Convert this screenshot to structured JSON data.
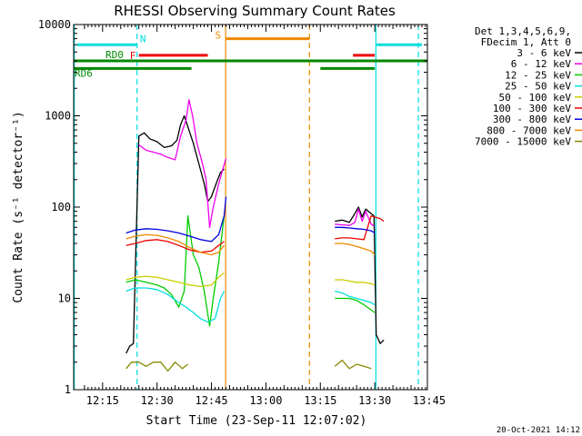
{
  "chart_data": {
    "type": "line",
    "title": "RHESSI Observing Summary Count Rates",
    "xlabel": "Start Time (23-Sep-11 12:07:02)",
    "ylabel": "Count Rate (s⁻¹ detector⁻¹)",
    "yscale": "log",
    "ylim": [
      1,
      10000
    ],
    "xlim_minutes": [
      7.03,
      104.5
    ],
    "x_tick_labels": [
      "12:15",
      "12:30",
      "12:45",
      "13:00",
      "13:15",
      "13:30",
      "13:45"
    ],
    "x_tick_minutes": [
      15,
      30,
      45,
      60,
      75,
      90,
      105
    ],
    "y_tick_labels": [
      "1",
      "10",
      "100",
      "1000",
      "10000"
    ],
    "y_tick_values": [
      1,
      10,
      100,
      1000,
      10000
    ],
    "legend_position": "right",
    "legend_header": [
      "Det 1,3,4,5,6,9,",
      "FDecim 1, Att 0"
    ],
    "timestamp": "20-Oct-2021 14:12",
    "series": [
      {
        "name": "3 - 6 keV",
        "color": "#000000",
        "segments": [
          [
            [
              21.5,
              2.5
            ],
            [
              22.5,
              3
            ],
            [
              23.5,
              3.2
            ],
            [
              25,
              600
            ],
            [
              26.5,
              650
            ],
            [
              28,
              560
            ],
            [
              30,
              520
            ],
            [
              32,
              450
            ],
            [
              34,
              470
            ],
            [
              35.5,
              540
            ],
            [
              36.5,
              800
            ],
            [
              37.5,
              1000
            ],
            [
              38.5,
              760
            ],
            [
              40,
              500
            ],
            [
              41.5,
              300
            ],
            [
              43,
              180
            ],
            [
              44,
              115
            ],
            [
              45,
              130
            ],
            [
              46.5,
              190
            ],
            [
              47.5,
              240
            ],
            [
              48.5,
              260
            ]
          ],
          [
            [
              79,
              70
            ],
            [
              81,
              72
            ],
            [
              83,
              68
            ],
            [
              84.5,
              85
            ],
            [
              85.5,
              100
            ],
            [
              86.5,
              78
            ],
            [
              87.5,
              95
            ],
            [
              89,
              85
            ],
            [
              89.8,
              80
            ],
            [
              90.4,
              4
            ],
            [
              91.5,
              3.2
            ],
            [
              92.5,
              3.5
            ]
          ]
        ]
      },
      {
        "name": "6 - 12 keV",
        "color": "#ee00ee",
        "segments": [
          [
            [
              25,
              480
            ],
            [
              27,
              420
            ],
            [
              29,
              400
            ],
            [
              31,
              380
            ],
            [
              33,
              350
            ],
            [
              35,
              330
            ],
            [
              36.5,
              600
            ],
            [
              38,
              900
            ],
            [
              38.8,
              1500
            ],
            [
              39.8,
              1000
            ],
            [
              41,
              500
            ],
            [
              42.5,
              300
            ],
            [
              43.5,
              200
            ],
            [
              44.5,
              60
            ],
            [
              45.5,
              100
            ],
            [
              47,
              180
            ],
            [
              48,
              250
            ],
            [
              49,
              340
            ]
          ],
          [
            [
              79,
              65
            ],
            [
              81,
              64
            ],
            [
              83,
              63
            ],
            [
              84.5,
              68
            ],
            [
              85.5,
              95
            ],
            [
              86.5,
              70
            ],
            [
              87.5,
              90
            ],
            [
              89,
              65
            ],
            [
              89.8,
              62
            ]
          ]
        ]
      },
      {
        "name": "12 - 25 keV",
        "color": "#00cc00",
        "segments": [
          [
            [
              21.5,
              15
            ],
            [
              24,
              16
            ],
            [
              27,
              15
            ],
            [
              30,
              14
            ],
            [
              32,
              13
            ],
            [
              34,
              11
            ],
            [
              36,
              8
            ],
            [
              37.5,
              12
            ],
            [
              38.5,
              80
            ],
            [
              40,
              30
            ],
            [
              41.5,
              22
            ],
            [
              43,
              12
            ],
            [
              44.5,
              5
            ],
            [
              45.5,
              10
            ],
            [
              47,
              25
            ],
            [
              48.5,
              80
            ]
          ],
          [
            [
              79,
              10
            ],
            [
              81,
              10
            ],
            [
              83,
              10
            ],
            [
              85,
              9.5
            ],
            [
              87,
              8.5
            ],
            [
              89,
              7.5
            ],
            [
              90,
              7
            ]
          ]
        ]
      },
      {
        "name": "25 - 50 keV",
        "color": "#00dddd",
        "segments": [
          [
            [
              21.5,
              12
            ],
            [
              24,
              13
            ],
            [
              27,
              13
            ],
            [
              30,
              12.5
            ],
            [
              33,
              11
            ],
            [
              36,
              9
            ],
            [
              38,
              8
            ],
            [
              40,
              7
            ],
            [
              42,
              6
            ],
            [
              44,
              5.5
            ],
            [
              46,
              6
            ],
            [
              47.5,
              10
            ],
            [
              48.5,
              12
            ]
          ],
          [
            [
              79,
              12
            ],
            [
              81,
              11.5
            ],
            [
              83,
              10.5
            ],
            [
              85,
              10
            ],
            [
              87,
              9.5
            ],
            [
              89,
              9
            ],
            [
              90,
              8.5
            ]
          ]
        ]
      },
      {
        "name": "50 - 100 keV",
        "color": "#cccc00",
        "segments": [
          [
            [
              21.5,
              16
            ],
            [
              24,
              17
            ],
            [
              27,
              17.5
            ],
            [
              30,
              17
            ],
            [
              33,
              16
            ],
            [
              36,
              15
            ],
            [
              39,
              14
            ],
            [
              42,
              13.5
            ],
            [
              45,
              14
            ],
            [
              47,
              17
            ],
            [
              48.5,
              19
            ]
          ],
          [
            [
              79,
              16
            ],
            [
              81,
              16
            ],
            [
              83,
              15.5
            ],
            [
              85,
              15
            ],
            [
              87,
              15
            ],
            [
              89,
              14.5
            ],
            [
              90,
              14
            ]
          ]
        ]
      },
      {
        "name": "100 - 300 keV",
        "color": "#ee0000",
        "segments": [
          [
            [
              21.5,
              38
            ],
            [
              24,
              40
            ],
            [
              27,
              43
            ],
            [
              30,
              44
            ],
            [
              33,
              42
            ],
            [
              36,
              38
            ],
            [
              39,
              34
            ],
            [
              42,
              32
            ],
            [
              45,
              33
            ],
            [
              47,
              38
            ],
            [
              48.5,
              42
            ]
          ],
          [
            [
              79,
              45
            ],
            [
              81,
              46
            ],
            [
              83,
              46
            ],
            [
              85,
              45
            ],
            [
              87,
              44
            ],
            [
              89,
              80
            ],
            [
              91.5,
              75
            ],
            [
              92.5,
              70
            ]
          ]
        ]
      },
      {
        "name": "300 - 800 keV",
        "color": "#0000dd",
        "segments": [
          [
            [
              21.5,
              52
            ],
            [
              24,
              56
            ],
            [
              27,
              58
            ],
            [
              30,
              57
            ],
            [
              33,
              55
            ],
            [
              36,
              52
            ],
            [
              39,
              48
            ],
            [
              42,
              44
            ],
            [
              45,
              42
            ],
            [
              47,
              50
            ],
            [
              48.5,
              80
            ],
            [
              49,
              130
            ]
          ],
          [
            [
              79,
              60
            ],
            [
              81,
              60
            ],
            [
              83,
              59
            ],
            [
              85,
              58
            ],
            [
              87,
              57
            ],
            [
              89,
              55
            ],
            [
              90,
              52
            ]
          ]
        ]
      },
      {
        "name": "800 - 7000 keV",
        "color": "#ee8800",
        "segments": [
          [
            [
              21.5,
              45
            ],
            [
              24,
              48
            ],
            [
              27,
              50
            ],
            [
              30,
              49
            ],
            [
              33,
              46
            ],
            [
              36,
              42
            ],
            [
              39,
              36
            ],
            [
              42,
              32
            ],
            [
              45,
              30
            ],
            [
              47,
              32
            ],
            [
              48.5,
              38
            ]
          ],
          [
            [
              79,
              40
            ],
            [
              81,
              40
            ],
            [
              83,
              39
            ],
            [
              85,
              37
            ],
            [
              87,
              35
            ],
            [
              89,
              33
            ],
            [
              90,
              30
            ]
          ]
        ]
      },
      {
        "name": "7000 - 15000 keV",
        "color": "#888800",
        "segments": [
          [
            [
              21.5,
              1.7
            ],
            [
              23,
              2
            ],
            [
              25,
              2
            ],
            [
              27,
              1.8
            ],
            [
              29,
              2
            ],
            [
              31,
              2
            ],
            [
              33,
              1.6
            ],
            [
              35,
              2
            ],
            [
              37,
              1.7
            ],
            [
              38.5,
              1.9
            ]
          ],
          [
            [
              79,
              1.8
            ],
            [
              81,
              2.1
            ],
            [
              83,
              1.7
            ],
            [
              85,
              1.9
            ],
            [
              87,
              1.8
            ],
            [
              89,
              1.7
            ]
          ]
        ]
      }
    ],
    "vertical_markers": [
      {
        "minute": 7.2,
        "color": "#00dddd",
        "style": "solid"
      },
      {
        "minute": 24.5,
        "color": "#00dddd",
        "style": "dashed"
      },
      {
        "minute": 48.9,
        "color": "#ee8800",
        "style": "solid"
      },
      {
        "minute": 72,
        "color": "#ee8800",
        "style": "dashed"
      },
      {
        "minute": 90.3,
        "color": "#00dddd",
        "style": "solid"
      },
      {
        "minute": 102,
        "color": "#00dddd",
        "style": "dashed"
      }
    ],
    "flag_bars": [
      {
        "label": "N",
        "color": "#00dddd",
        "y_value": 6000,
        "ranges": [
          [
            8,
            24.3
          ],
          [
            90.5,
            103
          ]
        ]
      },
      {
        "label": "S",
        "color": "#ee8800",
        "y_value": 7000,
        "ranges": [
          [
            49,
            72
          ]
        ]
      },
      {
        "label": "F",
        "color": "#ee0000",
        "y_value": 4600,
        "ranges": [
          [
            25,
            44
          ],
          [
            84,
            90
          ]
        ]
      },
      {
        "label": "RD0",
        "color": "#008800",
        "y_value": 4000,
        "ranges": [
          [
            7,
            105
          ]
        ]
      },
      {
        "label": "RD6",
        "color": "#008800",
        "y_value": 3300,
        "ranges": [
          [
            7,
            39.5
          ],
          [
            75,
            90
          ]
        ]
      }
    ]
  }
}
